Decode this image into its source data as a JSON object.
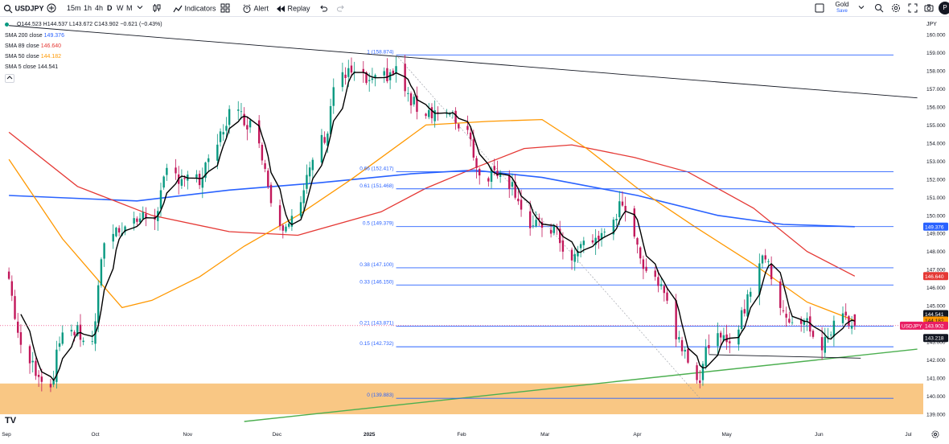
{
  "toolbar": {
    "symbol": "USDJPY",
    "intervals": [
      "15m",
      "1h",
      "4h",
      "D",
      "W",
      "M"
    ],
    "active_interval": "D",
    "indicators_label": "Indicators",
    "alert_label": "Alert",
    "replay_label": "Replay",
    "account_label": "Gold",
    "save_label": "Save",
    "avatar_letter": "P",
    "icons": [
      "plus-icon",
      "chevron-down-icon",
      "candles-icon",
      "indicators-icon",
      "layouts-icon",
      "alert-icon",
      "replay-icon",
      "undo-icon",
      "redo-icon",
      "layout-square-icon",
      "search-icon",
      "settings-icon",
      "fullscreen-icon",
      "camera-icon"
    ]
  },
  "legend": {
    "ohlc": "O144.523 H144.537 L143.672 C143.902 −0.621 (−0.43%)",
    "sma200": {
      "label": "SMA 200 close",
      "value": "149.376",
      "color": "#2962ff"
    },
    "sma89": {
      "label": "SMA 89 close",
      "value": "146.640",
      "color": "#e53935"
    },
    "sma50": {
      "label": "SMA 50 close",
      "value": "144.182",
      "color": "#ff9800"
    },
    "sma5": {
      "label": "SMA 5 close",
      "value": "144.541",
      "color": "#000000"
    }
  },
  "chart_data": {
    "type": "candlestick",
    "currency": "JPY",
    "y_ticks": [
      139,
      140,
      141,
      142,
      143,
      144,
      145,
      146,
      147,
      148,
      149,
      150,
      151,
      152,
      153,
      154,
      155,
      156,
      157,
      158,
      159,
      160
    ],
    "ylim": [
      138.6,
      160.8
    ],
    "x_labels": [
      "Sep",
      "Oct",
      "Nov",
      "Dec",
      "2025",
      "Feb",
      "Mar",
      "Apr",
      "May",
      "Jun",
      "Jul"
    ],
    "logo": "TV",
    "candle_colors": {
      "up": "#089981",
      "down": "#c2185b"
    },
    "price_anchors": [
      [
        "2024-09-02",
        146.5
      ],
      [
        "2024-09-06",
        142.5
      ],
      [
        "2024-09-11",
        141.5
      ],
      [
        "2024-09-16",
        140.5
      ],
      [
        "2024-09-20",
        143.8
      ],
      [
        "2024-09-25",
        143.5
      ],
      [
        "2024-09-30",
        142.8
      ],
      [
        "2024-10-04",
        148.7
      ],
      [
        "2024-10-09",
        149.3
      ],
      [
        "2024-10-15",
        149.8
      ],
      [
        "2024-10-21",
        150.0
      ],
      [
        "2024-10-25",
        152.3
      ],
      [
        "2024-10-31",
        152.1
      ],
      [
        "2024-11-05",
        151.8
      ],
      [
        "2024-11-10",
        153.5
      ],
      [
        "2024-11-15",
        155.7
      ],
      [
        "2024-11-20",
        155.4
      ],
      [
        "2024-11-25",
        154.3
      ],
      [
        "2024-11-30",
        150.0
      ],
      [
        "2024-12-03",
        149.6
      ],
      [
        "2024-12-09",
        150.5
      ],
      [
        "2024-12-13",
        153.2
      ],
      [
        "2024-12-18",
        154.7
      ],
      [
        "2024-12-20",
        157.2
      ],
      [
        "2024-12-26",
        157.9
      ],
      [
        "2025-01-02",
        157.2
      ],
      [
        "2025-01-07",
        157.8
      ],
      [
        "2025-01-10",
        158.0
      ],
      [
        "2025-01-15",
        156.2
      ],
      [
        "2025-01-20",
        155.8
      ],
      [
        "2025-01-24",
        155.8
      ],
      [
        "2025-01-29",
        155.3
      ],
      [
        "2025-02-03",
        154.8
      ],
      [
        "2025-02-07",
        152.2
      ],
      [
        "2025-02-10",
        152.3
      ],
      [
        "2025-02-14",
        152.6
      ],
      [
        "2025-02-19",
        151.4
      ],
      [
        "2025-02-24",
        149.3
      ],
      [
        "2025-02-28",
        149.4
      ],
      [
        "2025-03-04",
        149.2
      ],
      [
        "2025-03-10",
        147.4
      ],
      [
        "2025-03-14",
        148.5
      ],
      [
        "2025-03-20",
        148.8
      ],
      [
        "2025-03-26",
        150.4
      ],
      [
        "2025-03-31",
        149.2
      ],
      [
        "2025-04-04",
        146.5
      ],
      [
        "2025-04-09",
        146.5
      ],
      [
        "2025-04-14",
        143.4
      ],
      [
        "2025-04-18",
        142.3
      ],
      [
        "2025-04-22",
        140.9
      ],
      [
        "2025-04-25",
        143.1
      ],
      [
        "2025-04-30",
        143.0
      ],
      [
        "2025-05-05",
        143.8
      ],
      [
        "2025-05-09",
        146.0
      ],
      [
        "2025-05-13",
        148.0
      ],
      [
        "2025-05-19",
        145.2
      ],
      [
        "2025-05-23",
        143.8
      ],
      [
        "2025-05-28",
        144.1
      ],
      [
        "2025-06-02",
        142.6
      ],
      [
        "2025-06-06",
        144.0
      ],
      [
        "2025-06-10",
        144.5
      ],
      [
        "2025-06-13",
        143.9
      ]
    ],
    "sma200": [
      [
        "2024-09-02",
        151.1
      ],
      [
        "2024-10-15",
        150.8
      ],
      [
        "2024-11-15",
        151.4
      ],
      [
        "2024-12-15",
        151.8
      ],
      [
        "2025-01-15",
        152.3
      ],
      [
        "2025-02-05",
        152.5
      ],
      [
        "2025-02-28",
        152.1
      ],
      [
        "2025-04-01",
        151.1
      ],
      [
        "2025-04-28",
        150.0
      ],
      [
        "2025-05-20",
        149.5
      ],
      [
        "2025-06-13",
        149.376
      ]
    ],
    "sma89": [
      [
        "2024-09-02",
        154.6
      ],
      [
        "2024-09-25",
        151.6
      ],
      [
        "2024-10-20",
        150.0
      ],
      [
        "2024-11-15",
        149.1
      ],
      [
        "2024-12-08",
        148.9
      ],
      [
        "2025-01-05",
        150.2
      ],
      [
        "2025-01-20",
        151.5
      ],
      [
        "2025-02-05",
        152.6
      ],
      [
        "2025-02-22",
        153.7
      ],
      [
        "2025-03-10",
        153.9
      ],
      [
        "2025-03-31",
        153.2
      ],
      [
        "2025-04-18",
        152.4
      ],
      [
        "2025-05-10",
        150.4
      ],
      [
        "2025-05-28",
        148.0
      ],
      [
        "2025-06-13",
        146.64
      ]
    ],
    "sma50": [
      [
        "2024-09-02",
        153.1
      ],
      [
        "2024-09-20",
        148.7
      ],
      [
        "2024-10-01",
        146.6
      ],
      [
        "2024-10-10",
        144.9
      ],
      [
        "2024-10-20",
        145.3
      ],
      [
        "2024-11-05",
        146.6
      ],
      [
        "2024-11-20",
        148.3
      ],
      [
        "2024-12-08",
        150.0
      ],
      [
        "2024-12-26",
        152.0
      ],
      [
        "2025-01-20",
        155.0
      ],
      [
        "2025-02-10",
        155.2
      ],
      [
        "2025-02-28",
        155.3
      ],
      [
        "2025-03-15",
        153.7
      ],
      [
        "2025-04-01",
        151.5
      ],
      [
        "2025-04-20",
        149.4
      ],
      [
        "2025-05-10",
        147.3
      ],
      [
        "2025-05-28",
        145.2
      ],
      [
        "2025-06-13",
        144.182
      ]
    ],
    "fib_levels": [
      {
        "label": "1 (158.874)",
        "price": 158.874
      },
      {
        "label": "0.66 (152.417)",
        "price": 152.417
      },
      {
        "label": "0.61 (151.468)",
        "price": 151.468
      },
      {
        "label": "0.5 (149.379)",
        "price": 149.379
      },
      {
        "label": "0.38 (147.100)",
        "price": 147.1
      },
      {
        "label": "0.33 (146.150)",
        "price": 146.15
      },
      {
        "label": "0.21 (143.871)",
        "price": 143.871
      },
      {
        "label": "0.15 (142.732)",
        "price": 142.732
      },
      {
        "label": "0 (139.883)",
        "price": 139.883
      }
    ],
    "fib_start_date": "2025-01-10",
    "fib_end_date": "2025-06-26",
    "trendlines": [
      {
        "name": "resistance",
        "color": "#131722",
        "from": [
          "2024-09-02",
          160.5
        ],
        "to": [
          "2025-07-04",
          156.5
        ]
      },
      {
        "name": "support",
        "color": "#4caf50",
        "from": [
          "2024-11-20",
          138.6
        ],
        "to": [
          "2025-07-04",
          142.6
        ]
      },
      {
        "name": "range-floor",
        "color": "#131722",
        "from": [
          "2025-04-25",
          142.3
        ],
        "to": [
          "2025-06-15",
          142.1
        ]
      }
    ],
    "zone": {
      "color": "#f9c784",
      "top": 140.7,
      "bottom": 139.0
    },
    "axis_badges": [
      {
        "text": "149.376",
        "price": 149.376,
        "bg": "#2962ff",
        "fg": "#ffffff"
      },
      {
        "text": "146.640",
        "price": 146.64,
        "bg": "#e53935",
        "fg": "#ffffff"
      },
      {
        "text": "144.541",
        "price": 144.541,
        "bg": "#131722",
        "fg": "#ffffff"
      },
      {
        "text": "144.182",
        "price": 144.182,
        "bg": "#ff9800",
        "fg": "#131722"
      },
      {
        "text": "143.902",
        "price": 143.902,
        "bg": "#e91e63",
        "fg": "#ffffff"
      },
      {
        "text": "143.218",
        "price": 143.218,
        "bg": "#131722",
        "fg": "#ffffff"
      }
    ],
    "current_symbol_tag": "USDJPY"
  }
}
